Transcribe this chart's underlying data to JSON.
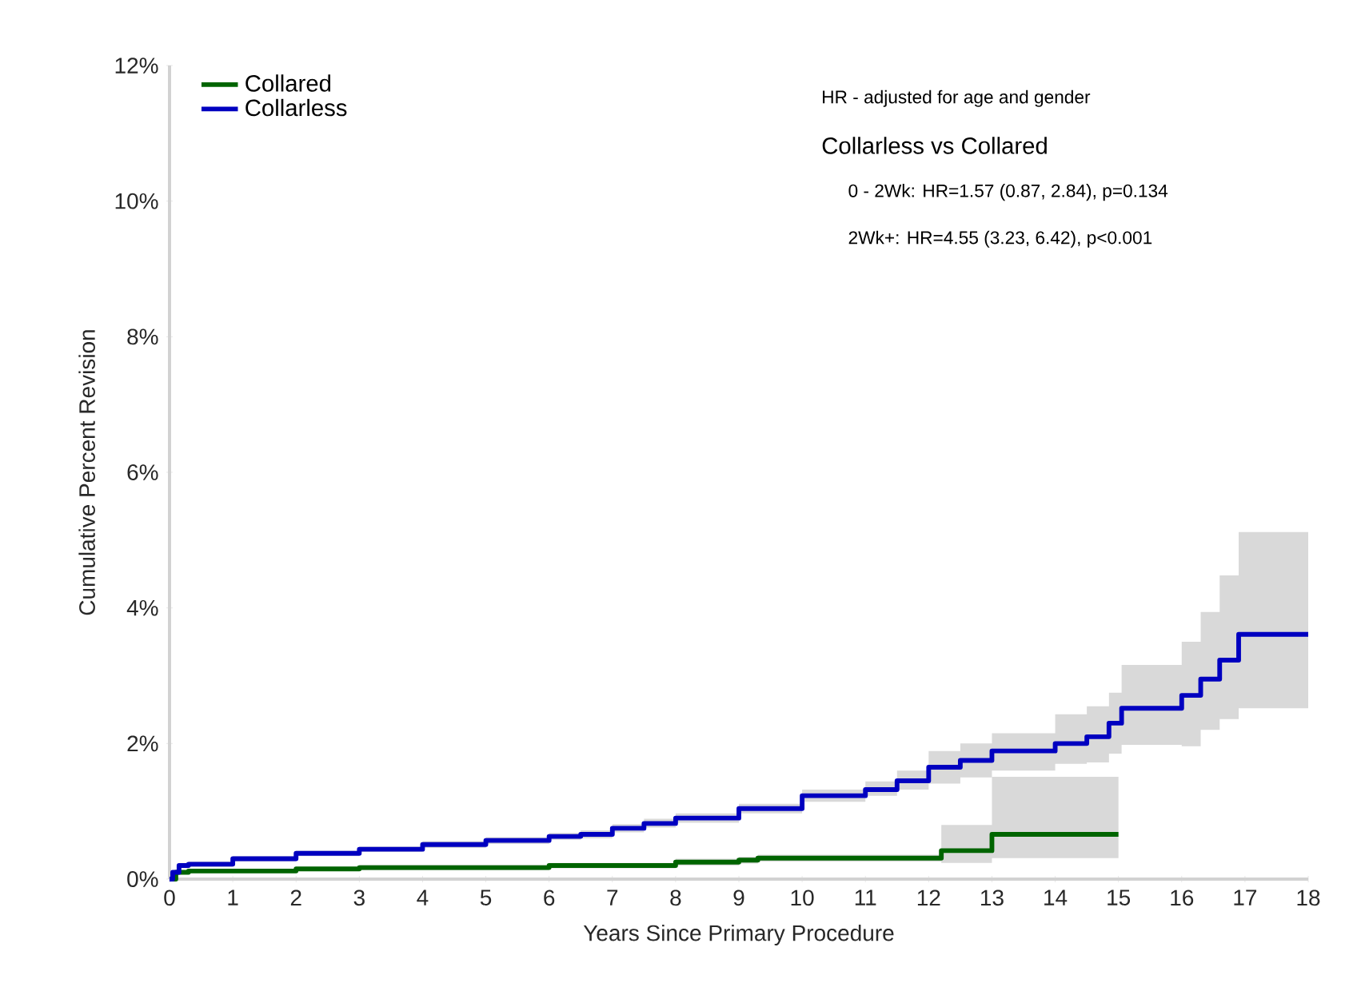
{
  "chart_data": {
    "type": "step",
    "xlabel": "Years Since Primary Procedure",
    "ylabel": "Cumulative Percent Revision",
    "xlim": [
      0,
      18
    ],
    "xticks": [
      0,
      1,
      2,
      3,
      4,
      5,
      6,
      7,
      8,
      9,
      10,
      11,
      12,
      13,
      14,
      15,
      16,
      17,
      18
    ],
    "ylim": [
      0,
      12
    ],
    "yticks": [
      {
        "value": 0,
        "label": "0%"
      },
      {
        "value": 2,
        "label": "2%"
      },
      {
        "value": 4,
        "label": "4%"
      },
      {
        "value": 6,
        "label": "6%"
      },
      {
        "value": 8,
        "label": "8%"
      },
      {
        "value": 10,
        "label": "10%"
      },
      {
        "value": 12,
        "label": "12%"
      }
    ],
    "legend": "top left",
    "grid": false,
    "annotations": [
      "HR - adjusted for age and gender",
      "Collarless vs Collared",
      "0 - 2Wk: HR=1.57 (0.87, 2.84), p=0.134",
      "2Wk+: HR=4.55 (3.23, 6.42), p<0.001"
    ],
    "series": [
      {
        "name": "Collared",
        "color": "#006400",
        "x": [
          0,
          0.1,
          0.3,
          2,
          3,
          6,
          8,
          9,
          9.3,
          12.2,
          13,
          15
        ],
        "values": [
          0,
          0.1,
          0.12,
          0.15,
          0.17,
          0.2,
          0.25,
          0.28,
          0.31,
          0.42,
          0.66,
          0.66
        ],
        "lower": [
          0,
          0.07,
          0.09,
          0.12,
          0.13,
          0.16,
          0.2,
          0.23,
          0.26,
          0.24,
          0.31,
          0.31
        ],
        "upper": [
          0,
          0.13,
          0.15,
          0.18,
          0.21,
          0.24,
          0.3,
          0.33,
          0.36,
          0.8,
          1.51,
          1.51
        ]
      },
      {
        "name": "Collarless",
        "color": "#0000c0",
        "x": [
          0,
          0.05,
          0.15,
          0.3,
          1,
          2,
          3,
          4,
          5,
          6,
          6.5,
          7,
          7.5,
          8,
          9,
          10,
          11,
          11.5,
          12,
          12.5,
          13,
          14,
          14.5,
          14.85,
          15.05,
          16,
          16.3,
          16.6,
          16.9,
          18
        ],
        "values": [
          0,
          0.1,
          0.2,
          0.22,
          0.3,
          0.38,
          0.44,
          0.51,
          0.57,
          0.63,
          0.66,
          0.75,
          0.82,
          0.9,
          1.04,
          1.23,
          1.32,
          1.45,
          1.65,
          1.75,
          1.89,
          2.0,
          2.1,
          2.3,
          2.52,
          2.71,
          2.95,
          3.23,
          3.61,
          3.61
        ],
        "lower": [
          0,
          0.07,
          0.16,
          0.18,
          0.26,
          0.34,
          0.4,
          0.46,
          0.52,
          0.58,
          0.6,
          0.69,
          0.76,
          0.83,
          0.97,
          1.14,
          1.23,
          1.32,
          1.41,
          1.5,
          1.6,
          1.7,
          1.72,
          1.85,
          1.98,
          1.96,
          2.2,
          2.36,
          2.52,
          2.52
        ],
        "upper": [
          0,
          0.13,
          0.24,
          0.26,
          0.34,
          0.42,
          0.48,
          0.56,
          0.62,
          0.68,
          0.72,
          0.81,
          0.89,
          0.97,
          1.11,
          1.32,
          1.44,
          1.6,
          1.89,
          2.0,
          2.15,
          2.43,
          2.55,
          2.75,
          3.16,
          3.5,
          3.94,
          4.48,
          5.12,
          5.12
        ]
      }
    ]
  }
}
